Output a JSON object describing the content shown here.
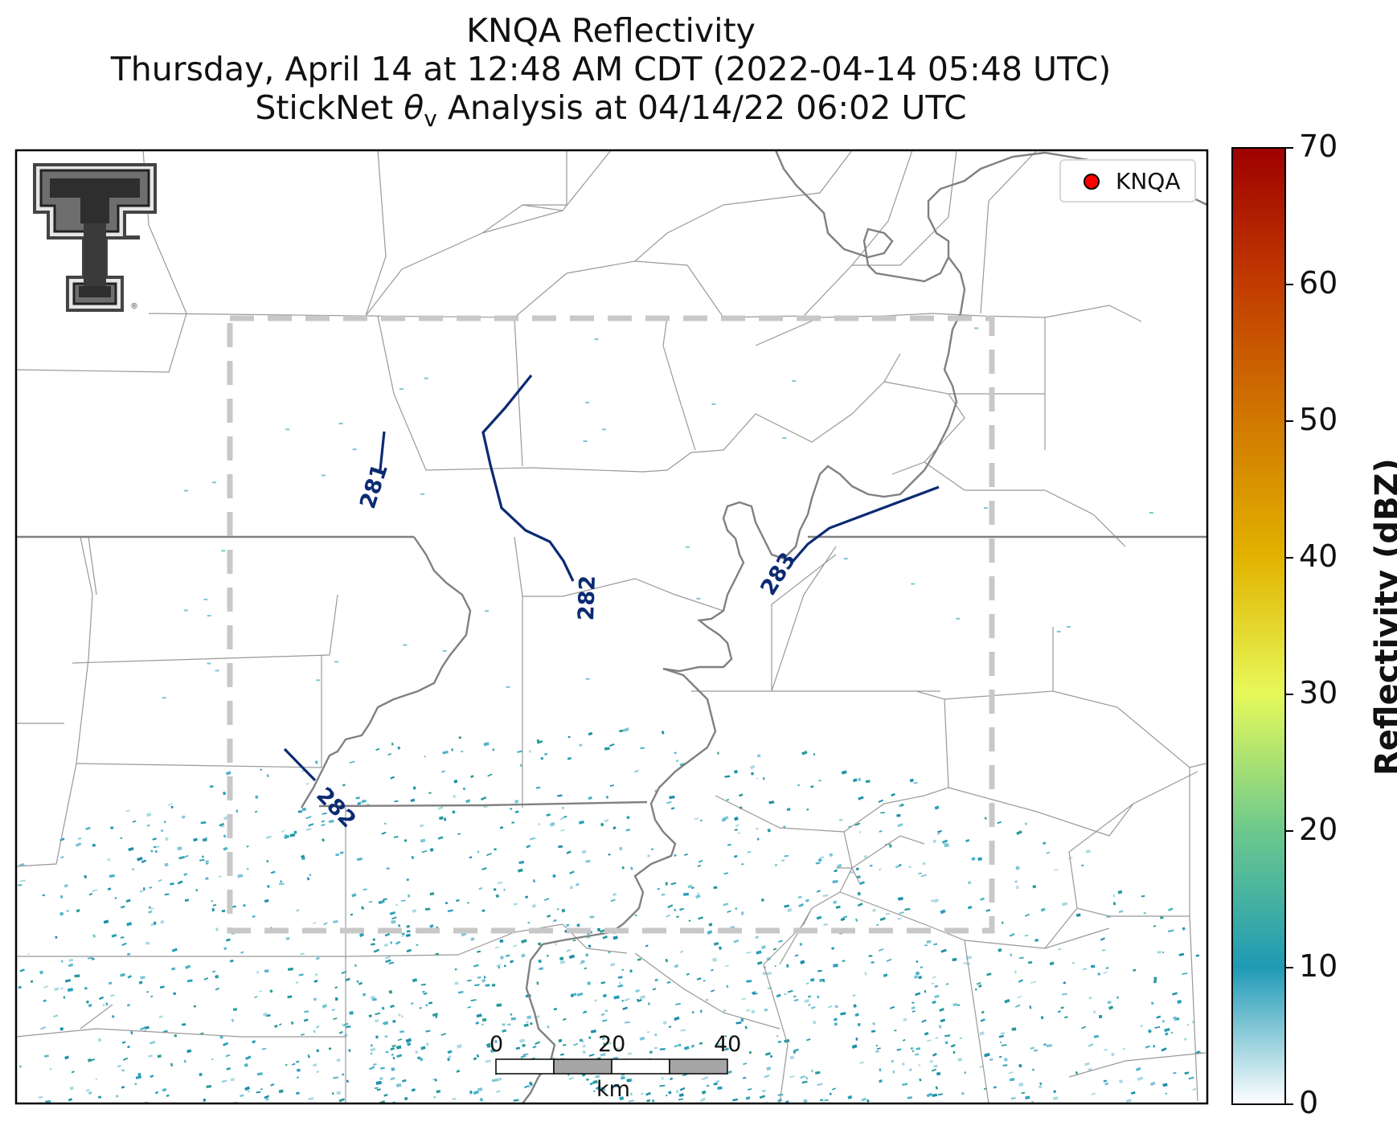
{
  "title": {
    "line1": "KNQA Reflectivity",
    "line2": "Thursday, April 14 at 12:48 AM CDT (2022-04-14 05:48 UTC)",
    "line3_prefix": "StickNet ",
    "line3_symbol": "θ",
    "line3_subscript": "v",
    "line3_suffix": " Analysis at 04/14/22 06:02 UTC"
  },
  "legend": {
    "label": "KNQA",
    "marker_color": "#ff0000"
  },
  "logo": {
    "name": "Texas Tech double-T logo",
    "text": "T"
  },
  "colorbar": {
    "label": "Reflectivity (dBZ)",
    "ticks": [
      "0",
      "10",
      "20",
      "30",
      "40",
      "50",
      "60",
      "70"
    ],
    "colors": [
      "#ffffff",
      "#1f9ab5",
      "#6cc98c",
      "#e6f95a",
      "#e2b300",
      "#d07800",
      "#c23c00",
      "#9e0000"
    ]
  },
  "scale_bar": {
    "ticks": [
      "0",
      "20",
      "40"
    ],
    "unit": "km"
  },
  "contours": {
    "units": "K",
    "labels": [
      "281",
      "282",
      "283",
      "282"
    ],
    "color": "#0b2a73"
  },
  "analysis_box": {
    "style": "dashed",
    "color": "#c8c8c8"
  },
  "colors": {
    "boundary": "#808080",
    "county": "#999999"
  }
}
